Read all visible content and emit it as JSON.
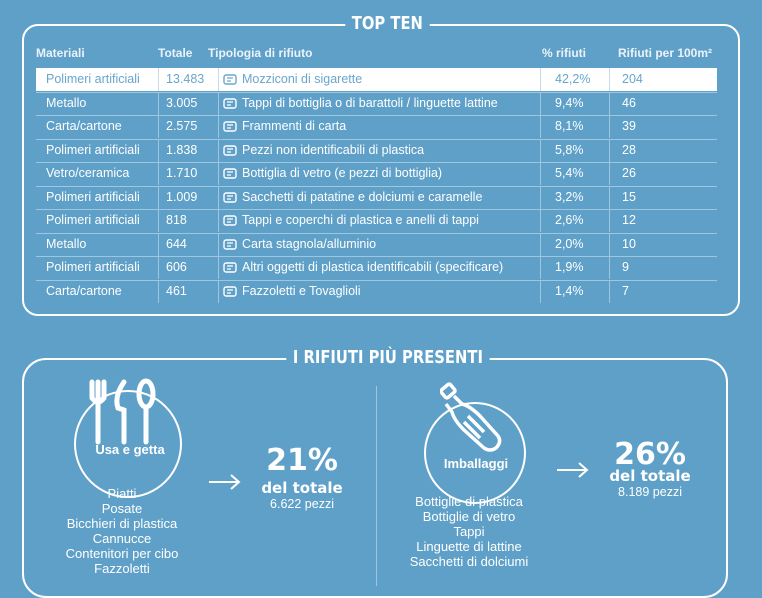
{
  "top_ten": {
    "title": "TOP TEN",
    "headers": [
      "Materiali",
      "Totale",
      "Tipologia di rifiuto",
      "% rifiuti",
      "Rifiuti per 100m²"
    ],
    "rows": [
      {
        "material": "Polimeri artificiali",
        "total": "13.483",
        "type": "Mozziconi di sigarette",
        "pct": "42,2%",
        "per100": "204",
        "icon": "cigarette-icon"
      },
      {
        "material": "Metallo",
        "total": "3.005",
        "type": "Tappi di bottiglia o di barattoli / linguette lattine",
        "pct": "9,4%",
        "per100": "46",
        "icon": "can-icon"
      },
      {
        "material": "Carta/cartone",
        "total": "2.575",
        "type": "Frammenti di carta",
        "pct": "8,1%",
        "per100": "39",
        "icon": "paper-icon"
      },
      {
        "material": "Polimeri artificiali",
        "total": "1.838",
        "type": "Pezzi non identificabili di plastica",
        "pct": "5,8%",
        "per100": "28",
        "icon": "plastic-pieces-icon"
      },
      {
        "material": "Vetro/ceramica",
        "total": "1.710",
        "type": "Bottiglia di vetro (e pezzi di bottiglia)",
        "pct": "5,4%",
        "per100": "26",
        "icon": "glass-bottle-icon"
      },
      {
        "material": "Polimeri artificiali",
        "total": "1.009",
        "type": "Sacchetti di patatine e dolciumi e caramelle",
        "pct": "3,2%",
        "per100": "15",
        "icon": "chips-bag-icon"
      },
      {
        "material": "Polimeri artificiali",
        "total": "818",
        "type": "Tappi e coperchi di plastica e anelli di tappi",
        "pct": "2,6%",
        "per100": "12",
        "icon": "cap-icon"
      },
      {
        "material": "Metallo",
        "total": "644",
        "type": "Carta stagnola/alluminio",
        "pct": "2,0%",
        "per100": "10",
        "icon": "foil-icon"
      },
      {
        "material": "Polimeri artificiali",
        "total": "606",
        "type": "Altri oggetti di plastica identificabili (specificare)",
        "pct": "1,9%",
        "per100": "9",
        "icon": "plastic-object-icon"
      },
      {
        "material": "Carta/cartone",
        "total": "461",
        "type": "Fazzoletti e Tovaglioli",
        "pct": "1,4%",
        "per100": "7",
        "icon": "tissue-icon"
      }
    ]
  },
  "present": {
    "title": "I RIFIUTI PIÙ PRESENTI",
    "left": {
      "label": "Usa e getta",
      "pct": "21%",
      "of_total": "del totale",
      "pieces": "6.622 pezzi",
      "items": [
        "Piatti",
        "Posate",
        "Bicchieri di plastica",
        "Cannucce",
        "Contenitori per cibo",
        "Fazzoletti"
      ],
      "icon": "cutlery-icon"
    },
    "right": {
      "label": "Imballaggi",
      "pct": "26%",
      "of_total": "del totale",
      "pieces": "8.189 pezzi",
      "items": [
        "Bottiglie di plastica",
        "Bottiglie di vetro",
        "Tappi",
        "Linguette di lattine",
        "Sacchetti di dolciumi"
      ],
      "icon": "plastic-bottle-icon"
    }
  },
  "colors": {
    "background": "#5fa0c8",
    "highlight_row": "#ffffff",
    "highlight_text": "#6aa6cc"
  }
}
